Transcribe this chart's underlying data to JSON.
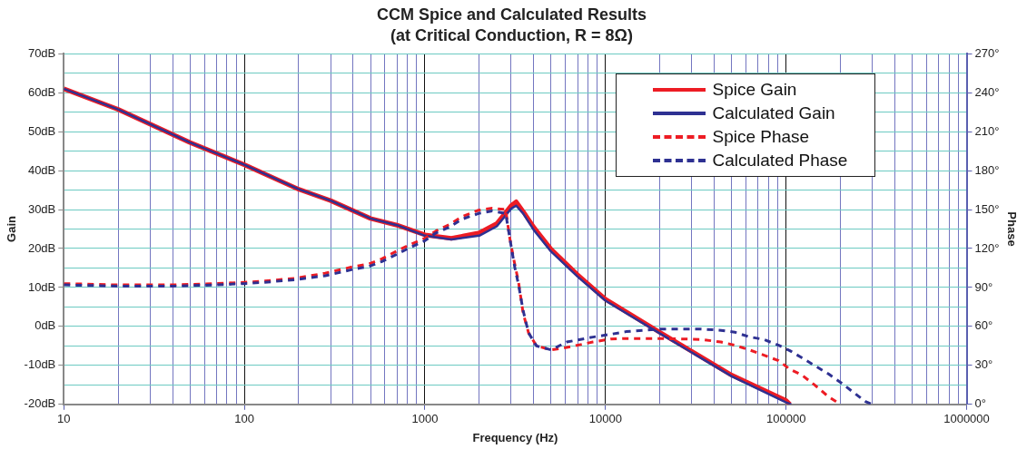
{
  "chart_data": {
    "type": "line",
    "title": "CCM Spice and Calculated Results",
    "subtitle": "(at Critical Conduction, R = 8Ω)",
    "xlabel": "Frequency (Hz)",
    "ylabel": "Gain",
    "y2label": "Phase",
    "log": "x",
    "grid": true,
    "legend": "top right",
    "marker": "none",
    "xlim": [
      10,
      1000000
    ],
    "xticks": [
      10,
      {
        "value": 20,
        "label": null
      },
      {
        "value": 30,
        "label": null
      },
      {
        "value": 40,
        "label": null
      },
      {
        "value": 50,
        "label": null
      },
      {
        "value": 60,
        "label": null
      },
      {
        "value": 70,
        "label": null
      },
      {
        "value": 80,
        "label": null
      },
      {
        "value": 90,
        "label": null
      },
      100,
      {
        "value": 200,
        "label": null
      },
      {
        "value": 300,
        "label": null
      },
      {
        "value": 400,
        "label": null
      },
      {
        "value": 500,
        "label": null
      },
      {
        "value": 600,
        "label": null
      },
      {
        "value": 700,
        "label": null
      },
      {
        "value": 800,
        "label": null
      },
      {
        "value": 900,
        "label": null
      },
      1000,
      {
        "value": 2000,
        "label": null
      },
      {
        "value": 3000,
        "label": null
      },
      {
        "value": 4000,
        "label": null
      },
      {
        "value": 5000,
        "label": null
      },
      {
        "value": 6000,
        "label": null
      },
      {
        "value": 7000,
        "label": null
      },
      {
        "value": 8000,
        "label": null
      },
      {
        "value": 9000,
        "label": null
      },
      10000,
      {
        "value": 20000,
        "label": null
      },
      {
        "value": 30000,
        "label": null
      },
      {
        "value": 40000,
        "label": null
      },
      {
        "value": 50000,
        "label": null
      },
      {
        "value": 60000,
        "label": null
      },
      {
        "value": 70000,
        "label": null
      },
      {
        "value": 80000,
        "label": null
      },
      {
        "value": 90000,
        "label": null
      },
      100000,
      {
        "value": 200000,
        "label": null
      },
      {
        "value": 300000,
        "label": null
      },
      {
        "value": 400000,
        "label": null
      },
      {
        "value": 500000,
        "label": null
      },
      {
        "value": 600000,
        "label": null
      },
      {
        "value": 700000,
        "label": null
      },
      {
        "value": 800000,
        "label": null
      },
      {
        "value": 900000,
        "label": null
      },
      1000000
    ],
    "ylim": [
      -20,
      70
    ],
    "yticks": [
      {
        "value": -20,
        "label": "-20dB"
      },
      {
        "value": -15,
        "label": null
      },
      {
        "value": -10,
        "label": "-10dB"
      },
      {
        "value": -5,
        "label": null
      },
      {
        "value": 0,
        "label": "0dB"
      },
      {
        "value": 5,
        "label": null
      },
      {
        "value": 10,
        "label": "10dB"
      },
      {
        "value": 15,
        "label": null
      },
      {
        "value": 20,
        "label": "20dB"
      },
      {
        "value": 25,
        "label": null
      },
      {
        "value": 30,
        "label": "30dB"
      },
      {
        "value": 35,
        "label": null
      },
      {
        "value": 40,
        "label": "40dB"
      },
      {
        "value": 45,
        "label": null
      },
      {
        "value": 50,
        "label": "50dB"
      },
      {
        "value": 55,
        "label": null
      },
      {
        "value": 60,
        "label": "60dB"
      },
      {
        "value": 65,
        "label": null
      },
      {
        "value": 70,
        "label": "70dB"
      }
    ],
    "y2lim": [
      0,
      270
    ],
    "y2ticks": [
      {
        "value": 0,
        "label": "0°"
      },
      {
        "value": 30,
        "label": "30°"
      },
      {
        "value": 60,
        "label": "60°"
      },
      {
        "value": 90,
        "label": "90°"
      },
      {
        "value": 120,
        "label": "120°"
      },
      {
        "value": 150,
        "label": "150°"
      },
      {
        "value": 180,
        "label": "180°"
      },
      {
        "value": 210,
        "label": "210°"
      },
      {
        "value": 240,
        "label": "240°"
      },
      {
        "value": 270,
        "label": "270°"
      }
    ],
    "series": [
      {
        "name": "Spice Gain",
        "color": "#ed1c24",
        "line_style": "solid",
        "x": [
          10,
          20,
          50,
          100,
          200,
          300,
          500,
          700,
          1000,
          1400,
          2000,
          2500,
          3000,
          3200,
          3500,
          4000,
          5000,
          7000,
          10000,
          20000,
          50000,
          100000,
          105000
        ],
        "values": [
          61,
          55.7,
          47.2,
          41.5,
          35.2,
          32.3,
          27.7,
          26,
          23.5,
          22.6,
          24,
          26.4,
          31,
          32,
          29.5,
          25.5,
          19.8,
          13.3,
          7,
          -1.5,
          -12.5,
          -19,
          -20
        ]
      },
      {
        "name": "Calculated Gain",
        "color": "#2e3192",
        "line_style": "solid",
        "x": [
          10,
          20,
          50,
          100,
          200,
          300,
          500,
          700,
          1000,
          1400,
          2000,
          2500,
          3000,
          3200,
          3500,
          4000,
          5000,
          7000,
          10000,
          20000,
          50000,
          100000,
          107000
        ],
        "values": [
          61,
          55.7,
          47.2,
          41.5,
          35.2,
          32.3,
          27.7,
          26,
          23.3,
          22.3,
          23.3,
          25.7,
          30.2,
          31,
          29,
          24.8,
          19.2,
          12.8,
          6.6,
          -1.8,
          -12.8,
          -19.5,
          -20
        ]
      },
      {
        "name": "Spice Phase",
        "color": "#ed1c24",
        "line_style": "dashed",
        "axis": "y2",
        "x": [
          10,
          20,
          40,
          70,
          100,
          130,
          190,
          280,
          400,
          485,
          577,
          685,
          820,
          1000,
          1150,
          1370,
          1600,
          1980,
          2360,
          2800,
          2950,
          3100,
          3300,
          3500,
          3750,
          4150,
          5000,
          6100,
          8500,
          10700,
          13000,
          20000,
          34000,
          43600,
          52000,
          62500,
          75000,
          91000,
          105000,
          122000,
          145000,
          172000,
          200000
        ],
        "values": [
          93,
          92,
          92,
          93,
          94,
          95,
          97,
          101,
          106,
          108,
          112,
          117.5,
          122.8,
          128,
          133.5,
          138.5,
          144.5,
          149.5,
          151,
          150,
          128,
          112,
          94,
          70,
          55,
          45,
          42,
          43.8,
          48,
          50.3,
          50.7,
          50.7,
          50,
          48,
          45.5,
          42,
          38,
          33.6,
          27,
          22.7,
          14.6,
          5.8,
          0
        ]
      },
      {
        "name": "Calculated Phase",
        "color": "#2e3192",
        "line_style": "dashed",
        "axis": "y2",
        "x": [
          10,
          20,
          40,
          70,
          100,
          130,
          190,
          280,
          400,
          485,
          577,
          685,
          820,
          1000,
          1150,
          1370,
          1600,
          1980,
          2360,
          2800,
          3000,
          3150,
          3300,
          3500,
          3750,
          4150,
          5000,
          6100,
          8500,
          10700,
          13000,
          20000,
          34000,
          43600,
          52000,
          62500,
          75000,
          91000,
          105000,
          122000,
          145000,
          172000,
          200000,
          235000,
          275000,
          300000
        ],
        "values": [
          92,
          91,
          91,
          92,
          93,
          94,
          96,
          99,
          104,
          106,
          110,
          115,
          120.5,
          126,
          132,
          136.5,
          142.5,
          147,
          149,
          147,
          122,
          105,
          92,
          72,
          55,
          45,
          42,
          48,
          51.8,
          54,
          56,
          58,
          58,
          57,
          55.6,
          52,
          50,
          45.5,
          41.3,
          36,
          29.6,
          23.4,
          17,
          9.5,
          2.2,
          0
        ]
      }
    ]
  }
}
